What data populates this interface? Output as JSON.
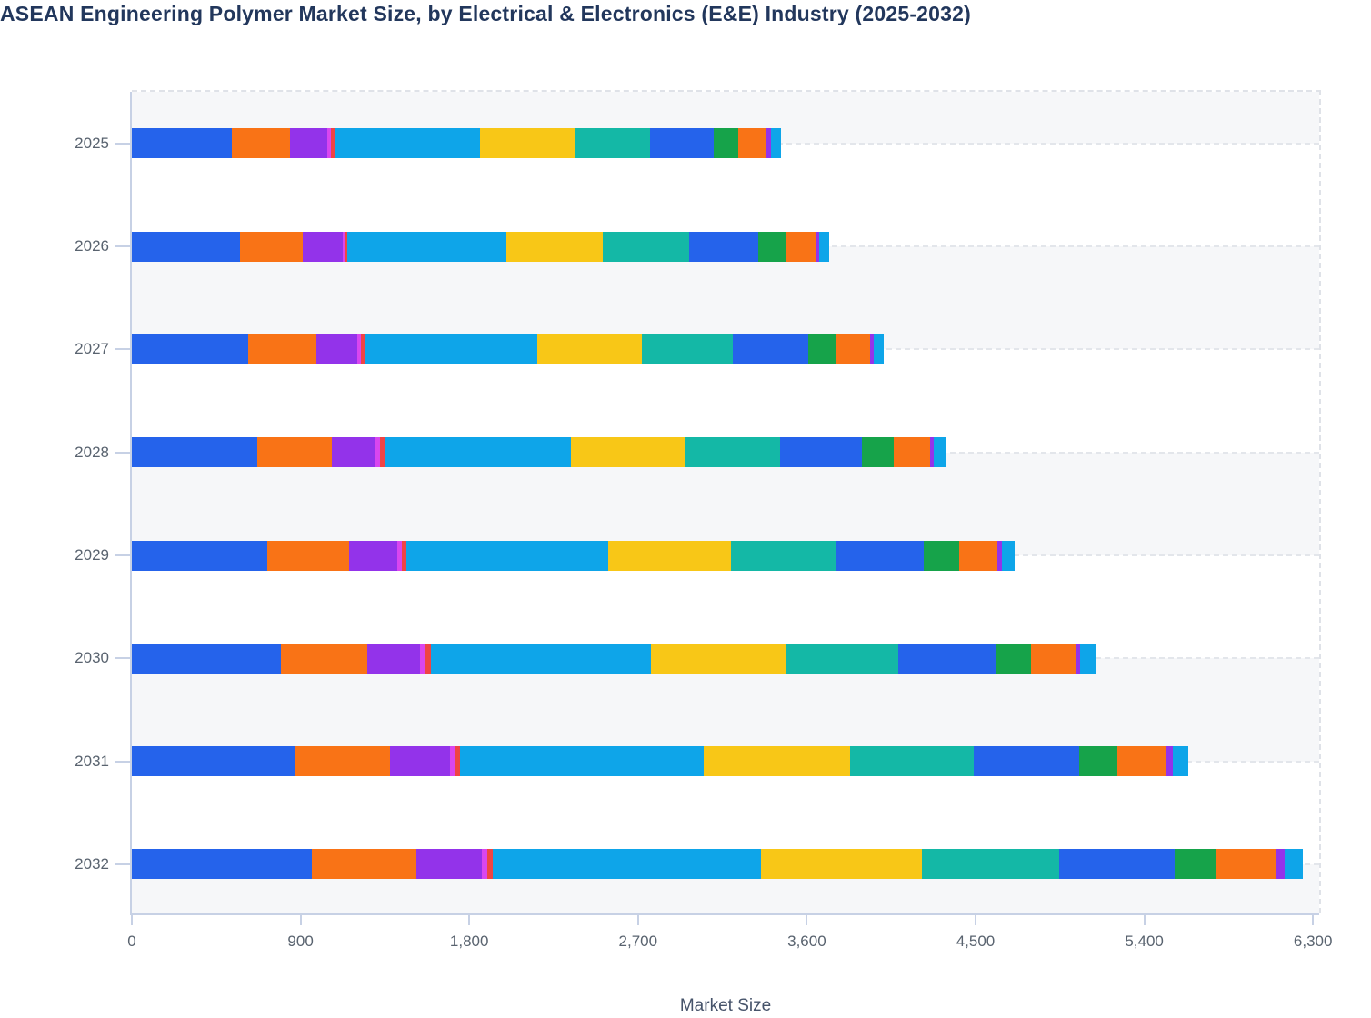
{
  "title": "ASEAN Engineering Polymer Market Size, by Electrical & Electronics (E&E) Industry (2025-2032)",
  "chart_data": {
    "type": "bar",
    "orientation": "horizontal",
    "stacked": true,
    "title": "ASEAN Engineering Polymer Market Size, by Electrical & Electronics (E&E) Industry (2025-2032)",
    "xlabel": "Market Size",
    "ylabel": "",
    "categories": [
      "2025",
      "2026",
      "2027",
      "2028",
      "2029",
      "2030",
      "2031",
      "2032"
    ],
    "x_ticks": [
      0,
      900,
      1800,
      2700,
      3600,
      4500,
      5400,
      6300
    ],
    "x_tick_labels": [
      "0",
      "900",
      "1,800",
      "2,700",
      "3,600",
      "4,500",
      "5,400",
      "6,300"
    ],
    "xlim": [
      0,
      6330
    ],
    "grid": "horizontal dashed lines at each category center, alternating light row bands",
    "legend": "not visible in screenshot",
    "series": [
      {
        "name": "segment-01-blue",
        "color": "#2563eb",
        "values": [
          535,
          576,
          619,
          670,
          724,
          794,
          874,
          962
        ]
      },
      {
        "name": "segment-02-orange",
        "color": "#f97316",
        "values": [
          310,
          337,
          365,
          398,
          433,
          464,
          503,
          558
        ]
      },
      {
        "name": "segment-03-purple",
        "color": "#9333ea",
        "values": [
          200,
          213,
          219,
          233,
          260,
          277,
          321,
          346
        ]
      },
      {
        "name": "segment-04-fuchsia",
        "color": "#d946ef",
        "values": [
          19,
          12,
          20,
          24,
          22,
          29,
          25,
          30
        ]
      },
      {
        "name": "segment-05-red",
        "color": "#ef4444",
        "values": [
          21,
          12,
          22,
          25,
          24,
          31,
          26,
          31
        ]
      },
      {
        "name": "segment-06-sky",
        "color": "#0ea5e9",
        "values": [
          771,
          850,
          917,
          993,
          1077,
          1176,
          1300,
          1431
        ]
      },
      {
        "name": "segment-07-yellow",
        "color": "#f8c717",
        "values": [
          509,
          513,
          560,
          607,
          656,
          715,
          780,
          857
        ]
      },
      {
        "name": "segment-08-teal",
        "color": "#14b8a6",
        "values": [
          399,
          460,
          484,
          506,
          556,
          601,
          661,
          732
        ]
      },
      {
        "name": "segment-09-blue",
        "color": "#2563eb",
        "values": [
          341,
          366,
          402,
          438,
          474,
          521,
          562,
          615
        ]
      },
      {
        "name": "segment-10-green",
        "color": "#16a34a",
        "values": [
          128,
          147,
          150,
          168,
          185,
          190,
          204,
          225
        ]
      },
      {
        "name": "segment-11-orange",
        "color": "#f97316",
        "values": [
          150,
          159,
          178,
          194,
          208,
          234,
          263,
          316
        ]
      },
      {
        "name": "segment-12-purple",
        "color": "#9333ea",
        "values": [
          28,
          22,
          21,
          20,
          24,
          27,
          36,
          45
        ]
      },
      {
        "name": "segment-13-sky",
        "color": "#0ea5e9",
        "values": [
          50,
          53,
          56,
          65,
          68,
          83,
          81,
          97
        ]
      }
    ],
    "totals_approx": [
      3461,
      3720,
      4013,
      4341,
      4711,
      5142,
      5636,
      6245
    ]
  },
  "colors": {
    "title_text": "#22375c",
    "axis_line": "#c7d1e5",
    "tick_label": "#59636f",
    "axis_title": "#46536a",
    "row_band": "#f6f7f9",
    "gridline": "#e3e6eb"
  }
}
